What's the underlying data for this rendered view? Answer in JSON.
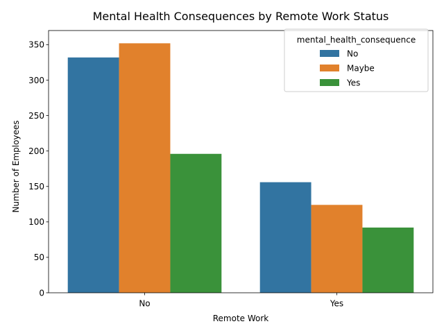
{
  "chart_data": {
    "type": "bar",
    "title": "Mental Health Consequences by Remote Work Status",
    "xlabel": "Remote Work",
    "ylabel": "Number of Employees",
    "categories": [
      "No",
      "Yes"
    ],
    "ylim": [
      0,
      370
    ],
    "yticks": [
      0,
      50,
      100,
      150,
      200,
      250,
      300,
      350
    ],
    "grid": false,
    "legend": {
      "title": "mental_health_consequence",
      "placement": "top-right"
    },
    "series": [
      {
        "name": "No",
        "color": "#3274a1",
        "values": [
          332,
          156
        ]
      },
      {
        "name": "Maybe",
        "color": "#e1812c",
        "values": [
          352,
          124
        ]
      },
      {
        "name": "Yes",
        "color": "#3a923a",
        "values": [
          196,
          92
        ]
      }
    ]
  }
}
